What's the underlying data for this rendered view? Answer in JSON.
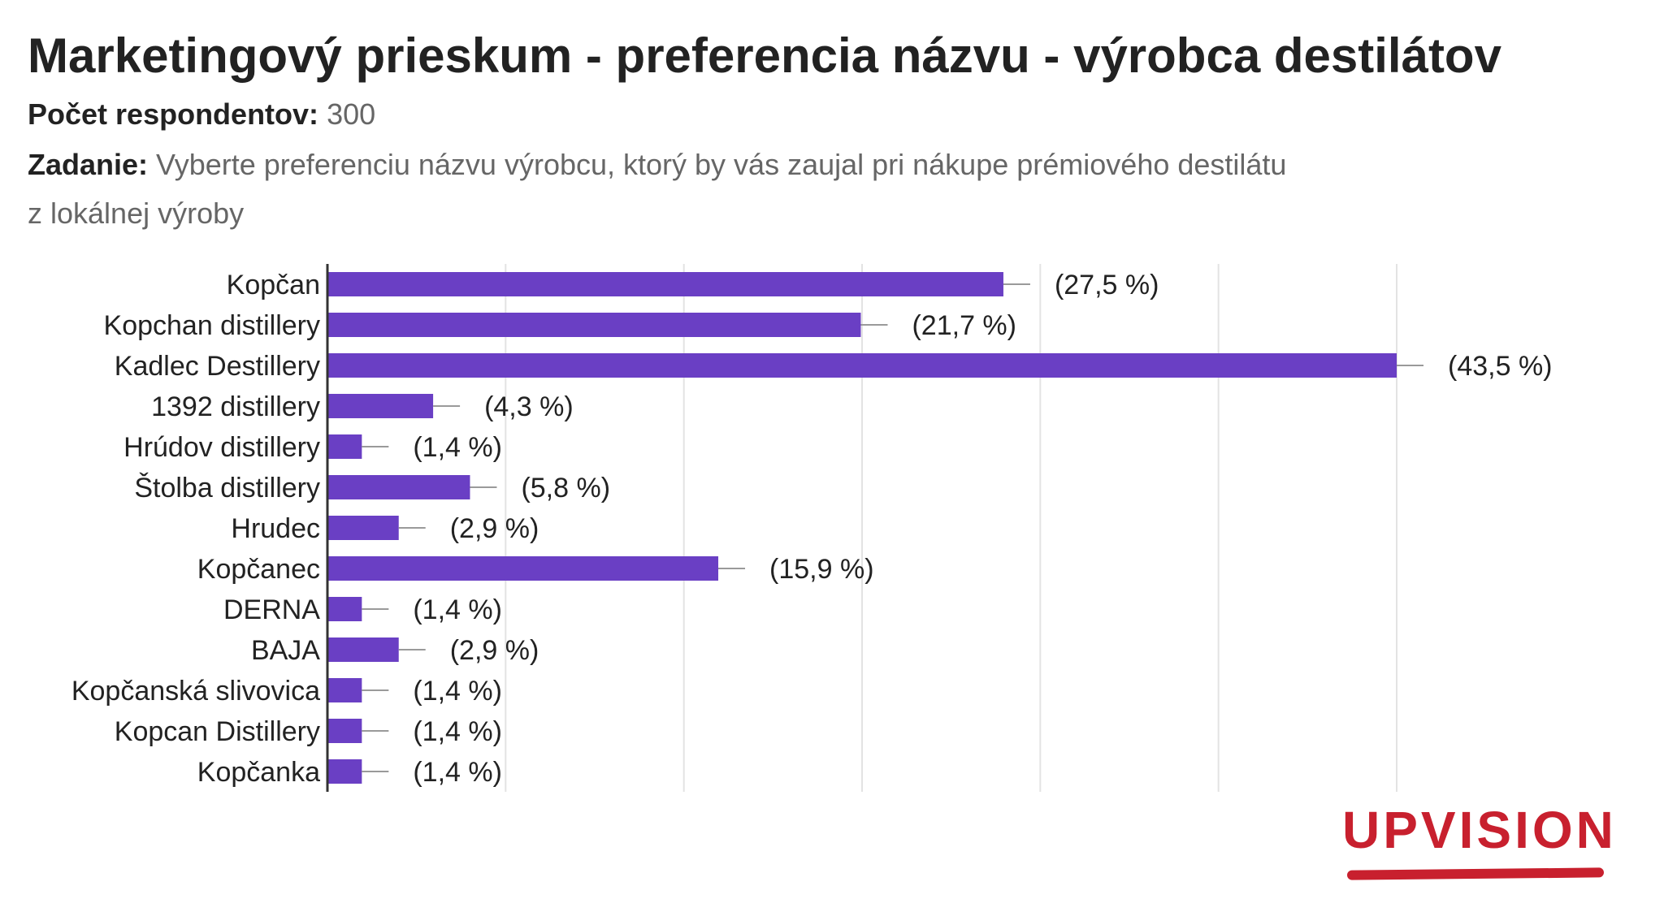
{
  "title": "Marketingový prieskum - preferencia názvu - výrobca destilátov",
  "respondents": {
    "label": "Počet respondentov:",
    "value": "300"
  },
  "task": {
    "label": "Zadanie:",
    "text_line1": "Vyberte preferenciu názvu výrobcu, ktorý by vás zaujal pri nákupe prémiového destilátu",
    "text_line2": "z lokálnej výroby"
  },
  "logo": {
    "text": "UPVISION",
    "color": "#c8202e"
  },
  "colors": {
    "bar": "#6a3fc4",
    "error_bar": "#9a9a9a",
    "grid": "#e3e3e3",
    "axis": "#333333"
  },
  "chart_data": {
    "type": "bar",
    "orientation": "horizontal",
    "title": "",
    "xlabel": "",
    "ylabel": "",
    "grid": true,
    "legend": "none",
    "xlim": [
      0,
      43.5
    ],
    "categories": [
      "Kopčan",
      "Kopchan distillery",
      "Kadlec Destillery",
      "1392 distillery",
      "Hrúdov distillery",
      "Štolba distillery",
      "Hrudec",
      "Kopčanec",
      "DERNA",
      "BAJA",
      "Kopčanská slivovica",
      "Kopcan Distillery",
      "Kopčanka"
    ],
    "values": [
      27.5,
      21.7,
      43.5,
      4.3,
      1.4,
      5.8,
      2.9,
      15.9,
      1.4,
      2.9,
      1.4,
      1.4,
      1.4
    ],
    "value_labels": [
      "(27,5 %)",
      "(21,7 %)",
      "(43,5  %)",
      "(4,3 %)",
      "(1,4 %)",
      "(5,8 %)",
      "(2,9 %)",
      "(15,9 %)",
      "(1,4 %)",
      "(2,9 %)",
      "(1,4 %)",
      "(1,4 %)",
      "(1,4 %)"
    ]
  }
}
